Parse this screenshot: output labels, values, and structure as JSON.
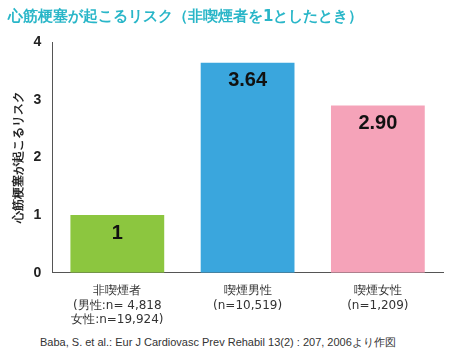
{
  "chart_data": {
    "type": "bar",
    "title": "心筋梗塞が起こるリスク（非喫煙者を1としたとき）",
    "y_label": "心筋梗塞が起こるリスク",
    "categories": [
      "非喫煙者\n(男性:n= 4,818\n女性:n=19,924)",
      "喫煙男性\n(n=10,519)",
      "喫煙女性\n(n=1,209)"
    ],
    "values": [
      1,
      3.64,
      2.9
    ],
    "value_labels": [
      "1",
      "3.64",
      "2.90"
    ],
    "colors": [
      "#8cc63f",
      "#3aa6dd",
      "#f5a3b9"
    ],
    "ylim": [
      0,
      4
    ],
    "yticks": [
      0,
      1,
      2,
      3,
      4
    ],
    "grid": false,
    "data_labels": true,
    "source": "Baba, S. et al.: Eur J Cardiovasc Prev Rehabil 13(2) : 207, 2006より作図"
  }
}
